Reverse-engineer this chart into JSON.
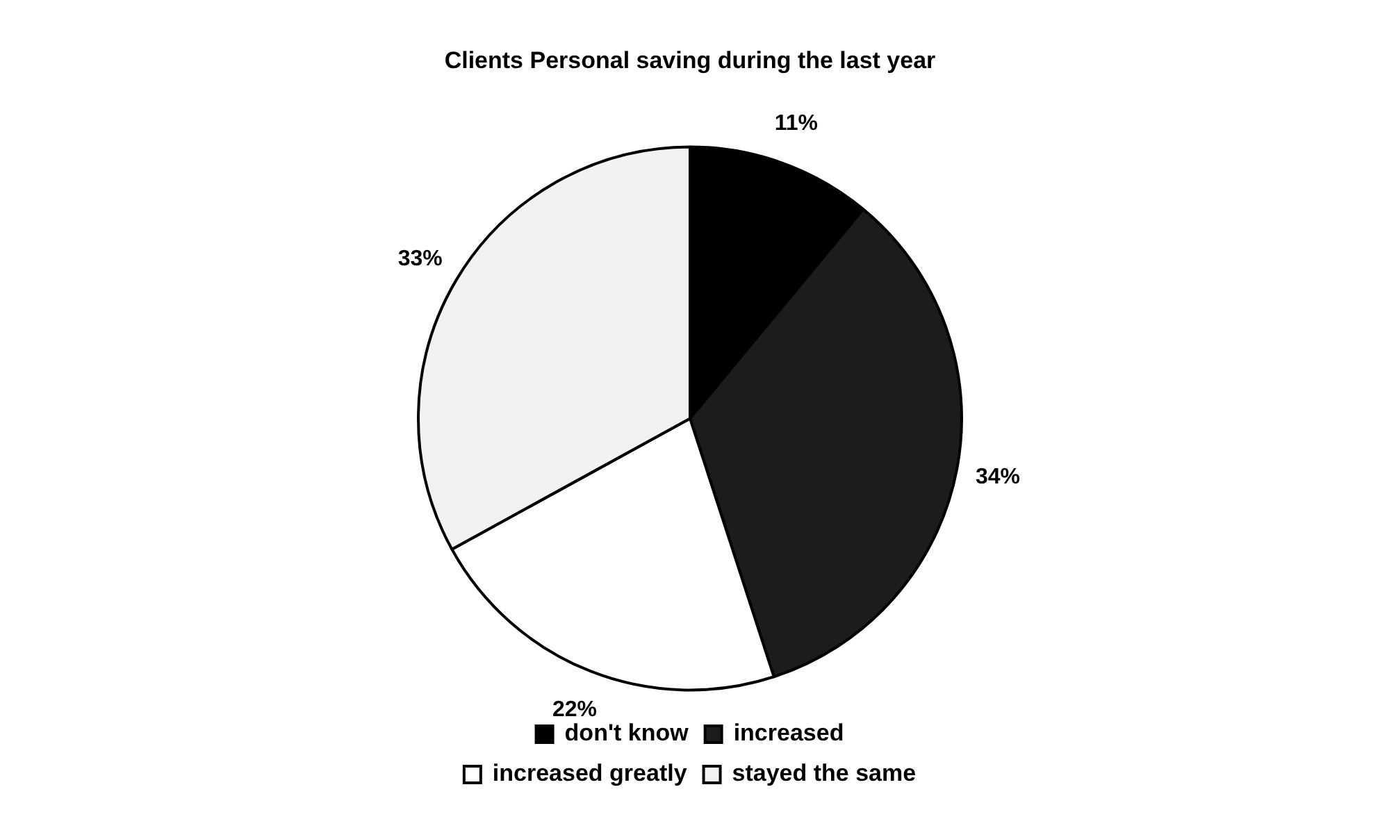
{
  "chart_data": {
    "type": "pie",
    "title": "Clients Personal saving during the last year",
    "categories": [
      "don't know",
      "increased",
      "increased greatly",
      "stayed the same"
    ],
    "values": [
      11,
      34,
      22,
      33
    ],
    "colors": [
      "#000000",
      "#1c1c1c",
      "#ffffff",
      "#f2f2f2"
    ],
    "value_labels": [
      "11%",
      "34%",
      "22%",
      "33%"
    ],
    "legend": "bottom"
  }
}
